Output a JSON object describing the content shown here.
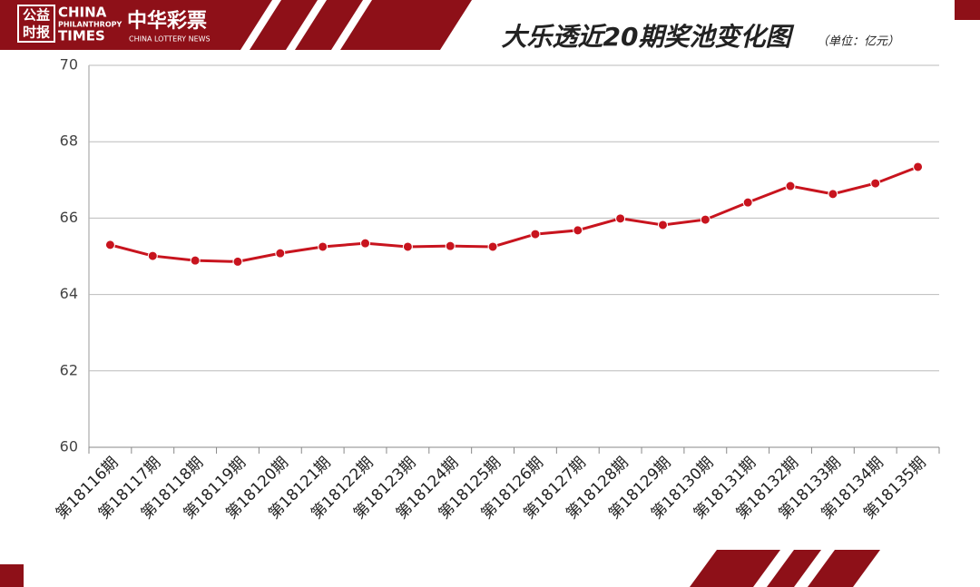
{
  "header": {
    "logo_cn": [
      "公益",
      "时报"
    ],
    "logo_en": [
      "CHINA",
      "PHILANTHROPY",
      "TIMES"
    ],
    "brand_cn": "中华彩票",
    "brand_en": "CHINA LOTTERY NEWS"
  },
  "chart_data": {
    "type": "line",
    "title": "大乐透近20期奖池变化图",
    "subtitle": "（单位：亿元）",
    "categories": [
      "第18116期",
      "第18117期",
      "第18118期",
      "第18119期",
      "第18120期",
      "第18121期",
      "第18122期",
      "第18123期",
      "第18124期",
      "第18125期",
      "第18126期",
      "第18127期",
      "第18128期",
      "第18129期",
      "第18130期",
      "第18131期",
      "第18132期",
      "第18133期",
      "第18134期",
      "第18135期"
    ],
    "values": [
      65.3,
      65.01,
      64.89,
      64.86,
      65.08,
      65.25,
      65.34,
      65.25,
      65.27,
      65.25,
      65.58,
      65.68,
      65.99,
      65.82,
      65.96,
      66.41,
      66.84,
      66.63,
      66.91,
      67.34
    ],
    "color": "#c8141e",
    "ylim": [
      60,
      70
    ],
    "yticks": [
      60,
      62,
      64,
      66,
      68,
      70
    ],
    "grid": true
  }
}
